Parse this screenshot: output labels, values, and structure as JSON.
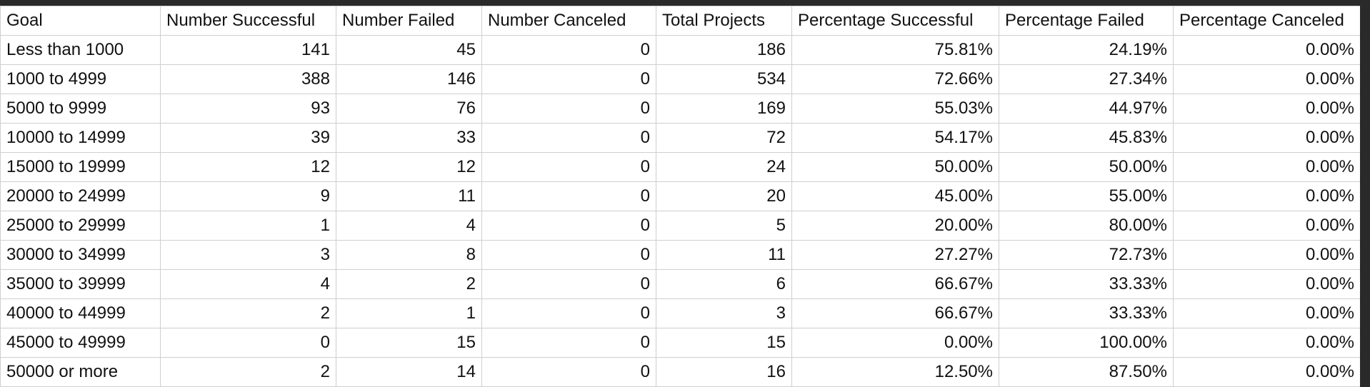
{
  "table": {
    "headers": [
      "Goal",
      "Number Successful",
      "Number Failed",
      "Number Canceled",
      "Total Projects",
      "Percentage Successful",
      "Percentage Failed",
      "Percentage Canceled"
    ],
    "rows": [
      [
        "Less than 1000",
        "141",
        "45",
        "0",
        "186",
        "75.81%",
        "24.19%",
        "0.00%"
      ],
      [
        "1000 to 4999",
        "388",
        "146",
        "0",
        "534",
        "72.66%",
        "27.34%",
        "0.00%"
      ],
      [
        "5000 to 9999",
        "93",
        "76",
        "0",
        "169",
        "55.03%",
        "44.97%",
        "0.00%"
      ],
      [
        "10000 to 14999",
        "39",
        "33",
        "0",
        "72",
        "54.17%",
        "45.83%",
        "0.00%"
      ],
      [
        "15000 to 19999",
        "12",
        "12",
        "0",
        "24",
        "50.00%",
        "50.00%",
        "0.00%"
      ],
      [
        "20000 to 24999",
        "9",
        "11",
        "0",
        "20",
        "45.00%",
        "55.00%",
        "0.00%"
      ],
      [
        "25000 to 29999",
        "1",
        "4",
        "0",
        "5",
        "20.00%",
        "80.00%",
        "0.00%"
      ],
      [
        "30000 to 34999",
        "3",
        "8",
        "0",
        "11",
        "27.27%",
        "72.73%",
        "0.00%"
      ],
      [
        "35000 to 39999",
        "4",
        "2",
        "0",
        "6",
        "66.67%",
        "33.33%",
        "0.00%"
      ],
      [
        "40000 to 44999",
        "2",
        "1",
        "0",
        "3",
        "66.67%",
        "33.33%",
        "0.00%"
      ],
      [
        "45000 to 49999",
        "0",
        "15",
        "0",
        "15",
        "0.00%",
        "100.00%",
        "0.00%"
      ],
      [
        "50000 or more",
        "2",
        "14",
        "0",
        "16",
        "12.50%",
        "87.50%",
        "0.00%"
      ]
    ]
  },
  "colors": {
    "background": "#2a2a2a",
    "sheet": "#ffffff",
    "gridline": "#cfcfcf",
    "text": "#111111"
  }
}
